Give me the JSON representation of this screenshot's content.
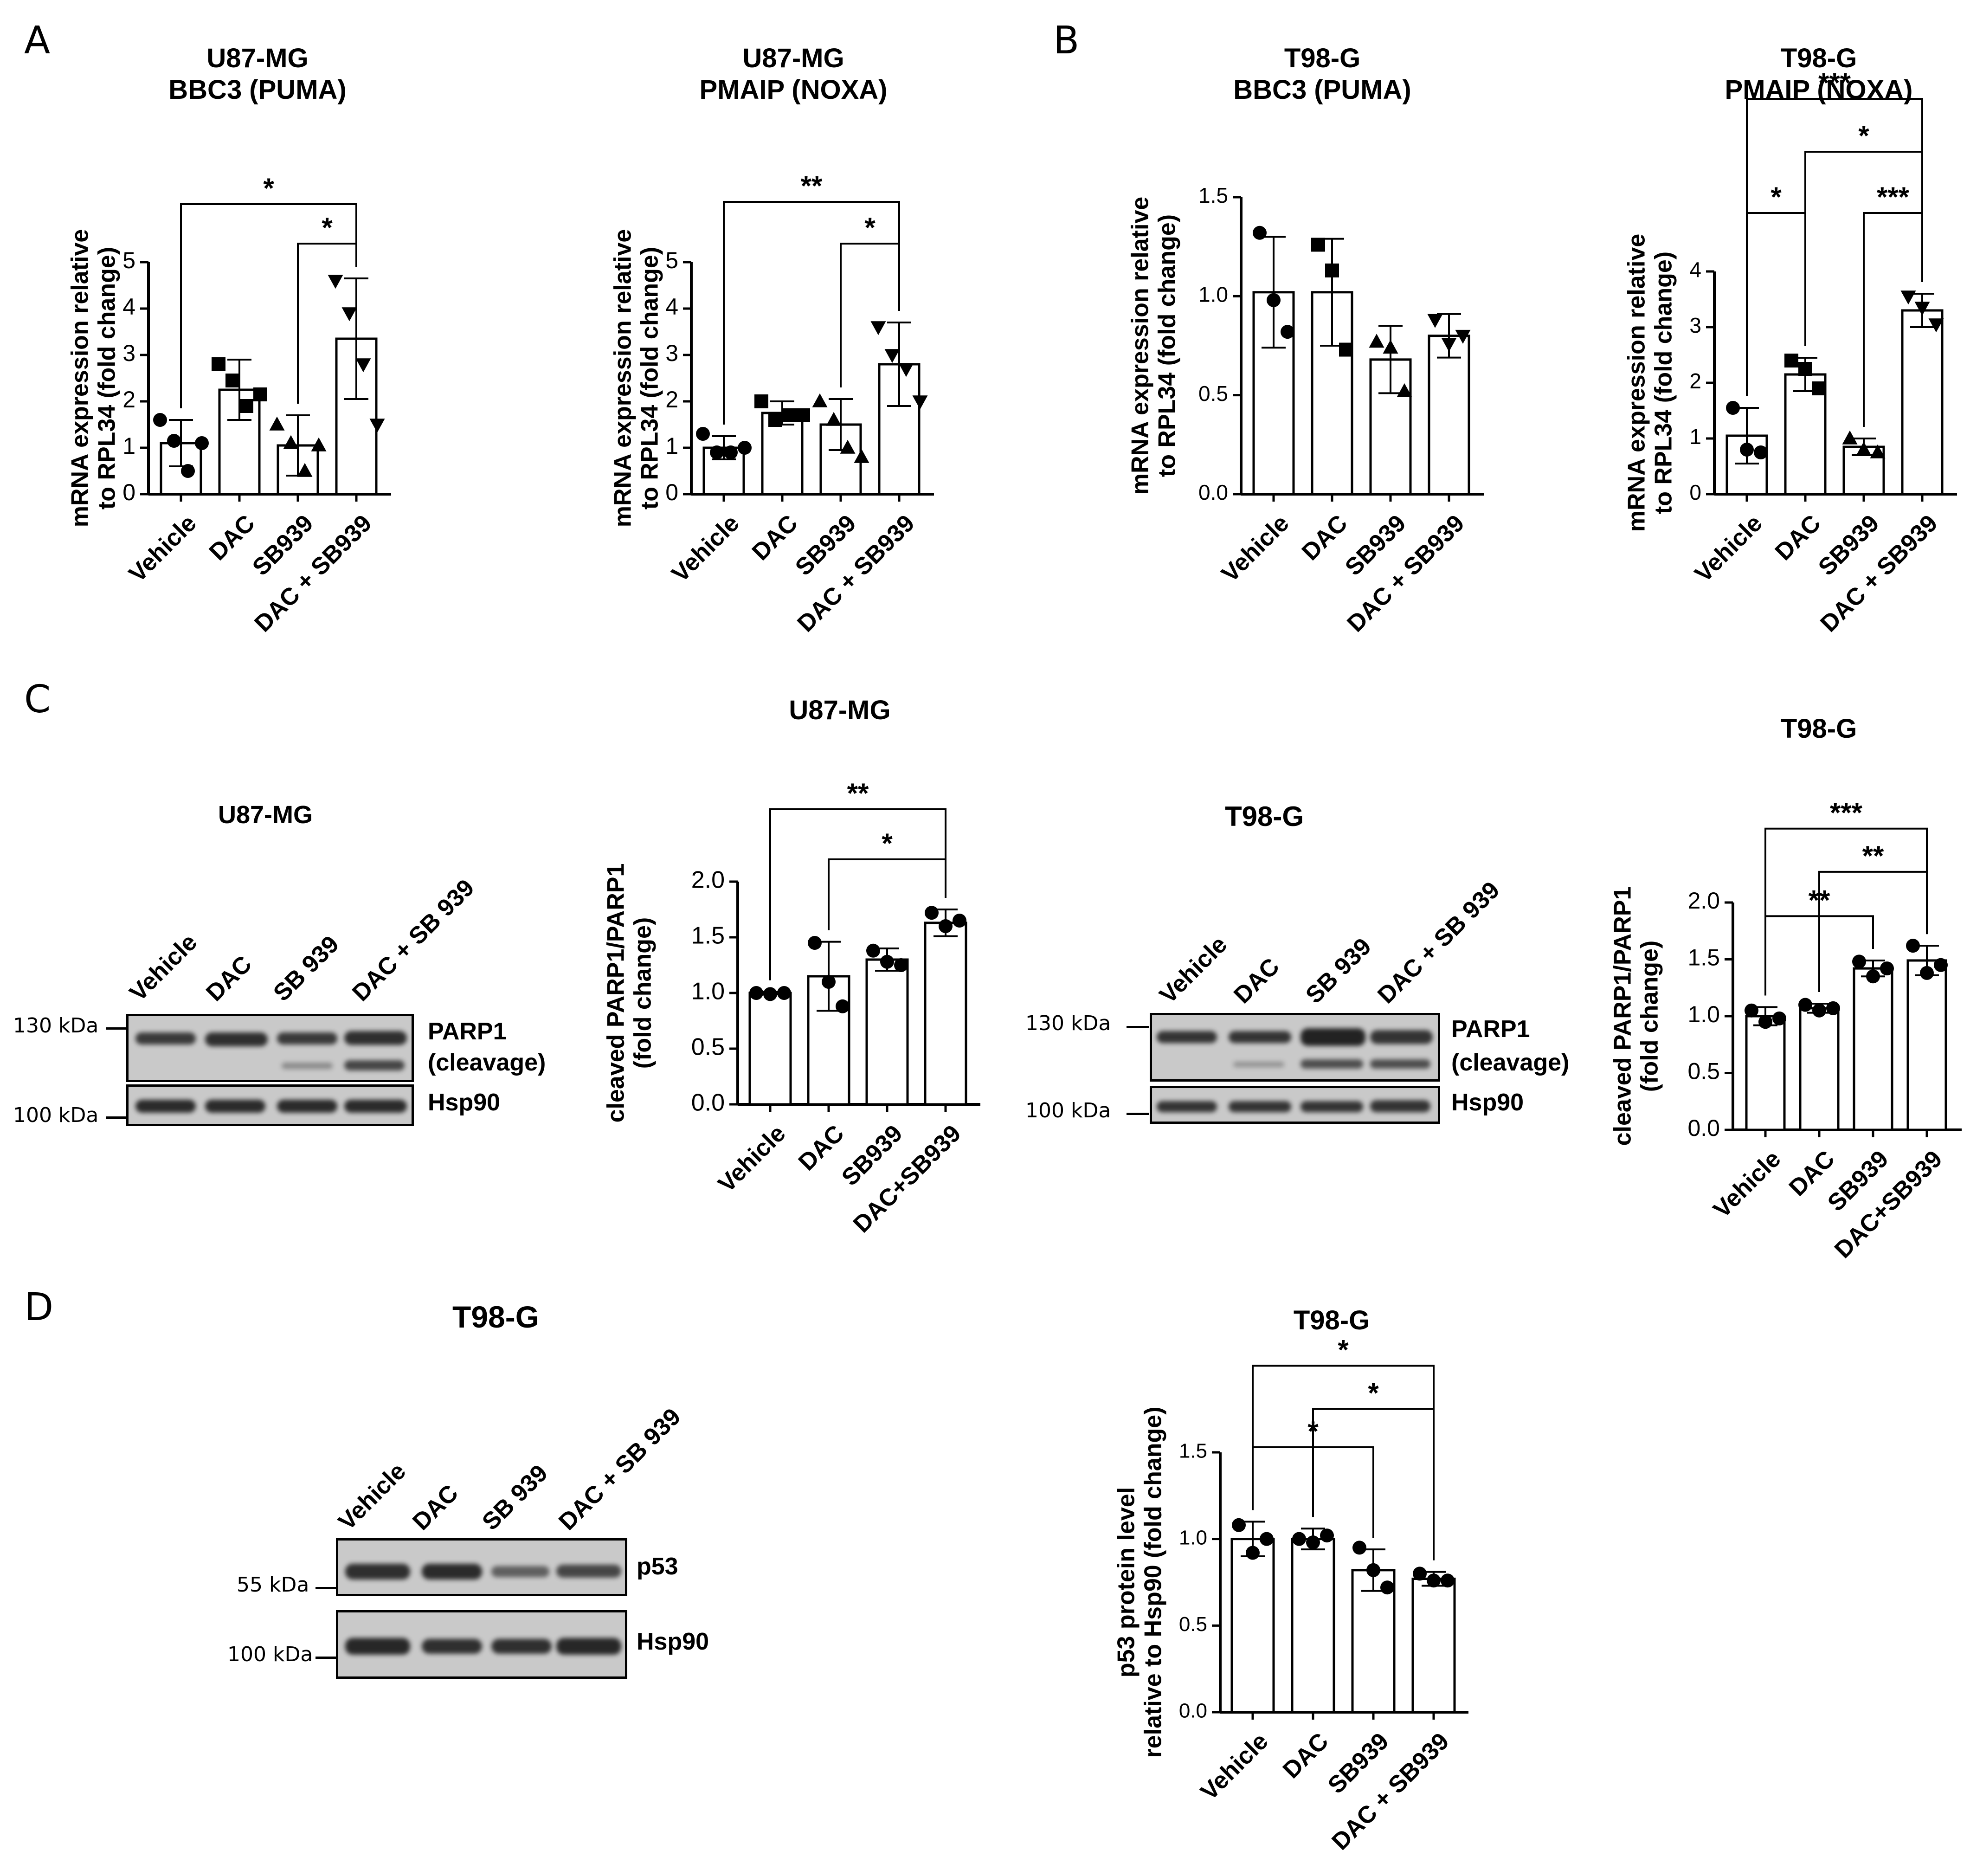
{
  "panel_letters": [
    "A",
    "B",
    "C",
    "D"
  ],
  "colors": {
    "ink": "#000000",
    "bar_fill": "#ffffff",
    "membrane": "#c9c9c9",
    "band": "#1a1a1a"
  },
  "blots": {
    "u87": {
      "header": "U87-MG",
      "lanes": [
        "Vehicle",
        "DAC",
        "SB 939",
        "DAC + SB 939"
      ],
      "markers": [
        "130 kDa",
        "100 kDa"
      ],
      "strip_labels": [
        "PARP1",
        "(cleavage)",
        "Hsp90"
      ]
    },
    "t98": {
      "header": "T98-G",
      "lanes": [
        "Vehicle",
        "DAC",
        "SB 939",
        "DAC + SB 939"
      ],
      "markers": [
        "130 kDa",
        "100 kDa"
      ],
      "strip_labels": [
        "PARP1",
        "(cleavage)",
        "Hsp90"
      ]
    },
    "p53": {
      "header": "T98-G",
      "lanes": [
        "Vehicle",
        "DAC",
        "SB 939",
        "DAC + SB 939"
      ],
      "markers": [
        "55 kDa",
        "100 kDa"
      ],
      "strip_labels": [
        "p53",
        "Hsp90"
      ]
    }
  },
  "chart_data": [
    {
      "id": "a1",
      "type": "bar",
      "title": [
        "U87-MG",
        "BBC3 (PUMA)"
      ],
      "ylabel": [
        "mRNA expression relative",
        "to RPL34 (fold change)"
      ],
      "categories": [
        "Vehicle",
        "DAC",
        "SB939",
        "DAC + SB939"
      ],
      "values": [
        1.1,
        2.25,
        1.05,
        3.35
      ],
      "errors": [
        0.5,
        0.65,
        0.65,
        1.3
      ],
      "marker": [
        "circle",
        "square",
        "triangle",
        "triangle-down"
      ],
      "points": [
        [
          1.6,
          1.15,
          0.5,
          1.1
        ],
        [
          2.8,
          2.45,
          1.9,
          2.15
        ],
        [
          1.5,
          1.1,
          0.5,
          1.05
        ],
        [
          4.6,
          3.9,
          2.8,
          1.5
        ]
      ],
      "ylim": [
        0,
        5
      ],
      "yticks": [
        0,
        1,
        2,
        3,
        4,
        5
      ],
      "significance": [
        {
          "from": 0,
          "to": 3,
          "label": "*",
          "level": 6.25
        },
        {
          "from": 2,
          "to": 3,
          "label": "*",
          "level": 5.4
        }
      ]
    },
    {
      "id": "a2",
      "type": "bar",
      "title": [
        "U87-MG",
        "PMAIP (NOXA)"
      ],
      "ylabel": [
        "mRNA expression relative",
        "to RPL34 (fold change)"
      ],
      "categories": [
        "Vehicle",
        "DAC",
        "SB939",
        "DAC + SB939"
      ],
      "values": [
        1.0,
        1.75,
        1.5,
        2.8
      ],
      "errors": [
        0.25,
        0.25,
        0.55,
        0.9
      ],
      "marker": [
        "circle",
        "square",
        "triangle",
        "triangle-down"
      ],
      "points": [
        [
          1.3,
          0.9,
          0.9,
          1.0
        ],
        [
          2.0,
          1.6,
          1.7,
          1.7
        ],
        [
          2.0,
          1.6,
          1.0,
          0.8
        ],
        [
          3.6,
          3.0,
          2.7,
          2.0
        ]
      ],
      "ylim": [
        0,
        5
      ],
      "yticks": [
        0,
        1,
        2,
        3,
        4,
        5
      ],
      "significance": [
        {
          "from": 0,
          "to": 3,
          "label": "**",
          "level": 6.3
        },
        {
          "from": 2,
          "to": 3,
          "label": "*",
          "level": 5.4
        }
      ]
    },
    {
      "id": "b1",
      "type": "bar",
      "title": [
        "T98-G",
        "BBC3 (PUMA)"
      ],
      "ylabel": [
        "mRNA expression relative",
        "to RPL34 (fold change)"
      ],
      "categories": [
        "Vehicle",
        "DAC",
        "SB939",
        "DAC + SB939"
      ],
      "values": [
        1.02,
        1.02,
        0.68,
        0.8
      ],
      "errors": [
        0.28,
        0.27,
        0.17,
        0.11
      ],
      "marker": [
        "circle",
        "square",
        "triangle",
        "triangle-down"
      ],
      "points": [
        [
          1.32,
          0.98,
          0.82
        ],
        [
          1.26,
          1.13,
          0.73
        ],
        [
          0.77,
          0.74,
          0.52
        ],
        [
          0.88,
          0.76,
          0.8
        ]
      ],
      "ylim": [
        0,
        1.5
      ],
      "yticks": [
        0.0,
        0.5,
        1.0,
        1.5
      ],
      "significance": []
    },
    {
      "id": "b2",
      "type": "bar",
      "title": [
        "T98-G",
        "PMAIP (NOXA)"
      ],
      "ylabel": [
        "mRNA expression relative",
        "to RPL34 (fold change)"
      ],
      "categories": [
        "Vehicle",
        "DAC",
        "SB939",
        "DAC + SB939"
      ],
      "values": [
        1.05,
        2.15,
        0.85,
        3.3
      ],
      "errors": [
        0.5,
        0.3,
        0.15,
        0.3
      ],
      "marker": [
        "circle",
        "square",
        "triangle",
        "triangle-down"
      ],
      "points": [
        [
          1.55,
          0.8,
          0.75
        ],
        [
          2.4,
          2.25,
          1.9
        ],
        [
          1.0,
          0.8,
          0.75
        ],
        [
          3.55,
          3.35,
          3.05
        ]
      ],
      "ylim": [
        0,
        4
      ],
      "yticks": [
        0,
        1,
        2,
        3,
        4
      ],
      "significance": [
        {
          "from": 0,
          "to": 3,
          "label": "***",
          "level": 7.1
        },
        {
          "from": 1,
          "to": 3,
          "label": "*",
          "level": 6.15
        },
        {
          "from": 0,
          "to": 1,
          "label": "*",
          "level": 5.05
        },
        {
          "from": 2,
          "to": 3,
          "label": "***",
          "level": 5.05
        }
      ]
    },
    {
      "id": "c1",
      "type": "bar",
      "title": [
        "U87-MG"
      ],
      "ylabel": [
        "cleaved PARP1/PARP1",
        "(fold change)"
      ],
      "categories": [
        "Vehicle",
        "DAC",
        "SB939",
        "DAC+SB939"
      ],
      "values": [
        1.0,
        1.15,
        1.3,
        1.63
      ],
      "errors": [
        0.01,
        0.31,
        0.1,
        0.12
      ],
      "marker": [
        "circle",
        "circle",
        "circle",
        "circle"
      ],
      "points": [
        [
          1.0,
          0.99,
          1.0
        ],
        [
          1.45,
          1.1,
          0.88
        ],
        [
          1.38,
          1.28,
          1.25
        ],
        [
          1.72,
          1.6,
          1.65
        ]
      ],
      "ylim": [
        0,
        2.0
      ],
      "yticks": [
        0.0,
        0.5,
        1.0,
        1.5,
        2.0
      ],
      "significance": [
        {
          "from": 0,
          "to": 3,
          "label": "**",
          "level": 2.65
        },
        {
          "from": 1,
          "to": 3,
          "label": "*",
          "level": 2.2
        }
      ]
    },
    {
      "id": "c2",
      "type": "bar",
      "title": [
        "T98-G"
      ],
      "ylabel": [
        "cleaved PARP1/PARP1",
        "(fold change)"
      ],
      "categories": [
        "Vehicle",
        "DAC",
        "SB939",
        "DAC+SB939"
      ],
      "values": [
        1.0,
        1.07,
        1.42,
        1.49
      ],
      "errors": [
        0.08,
        0.04,
        0.07,
        0.13
      ],
      "marker": [
        "circle",
        "circle",
        "circle",
        "circle"
      ],
      "points": [
        [
          1.05,
          0.95,
          0.98
        ],
        [
          1.1,
          1.05,
          1.07
        ],
        [
          1.48,
          1.35,
          1.42
        ],
        [
          1.62,
          1.38,
          1.45
        ]
      ],
      "ylim": [
        0,
        2.0
      ],
      "yticks": [
        0.0,
        0.5,
        1.0,
        1.5,
        2.0
      ],
      "significance": [
        {
          "from": 0,
          "to": 3,
          "label": "***",
          "level": 2.65
        },
        {
          "from": 1,
          "to": 3,
          "label": "**",
          "level": 2.27
        },
        {
          "from": 0,
          "to": 2,
          "label": "**",
          "level": 1.88
        }
      ]
    },
    {
      "id": "d1",
      "type": "bar",
      "title": [
        "T98-G"
      ],
      "ylabel": [
        "p53 protein level",
        "relative to Hsp90 (fold change)"
      ],
      "categories": [
        "Vehicle",
        "DAC",
        "SB939",
        "DAC + SB939"
      ],
      "values": [
        1.0,
        1.0,
        0.82,
        0.77
      ],
      "errors": [
        0.1,
        0.06,
        0.12,
        0.04
      ],
      "marker": [
        "circle",
        "circle",
        "circle",
        "circle"
      ],
      "points": [
        [
          1.08,
          0.92,
          1.0
        ],
        [
          1.0,
          0.98,
          1.02
        ],
        [
          0.95,
          0.82,
          0.72
        ],
        [
          0.8,
          0.76,
          0.76
        ]
      ],
      "ylim": [
        0,
        1.5
      ],
      "yticks": [
        0.0,
        0.5,
        1.0,
        1.5
      ],
      "significance": [
        {
          "from": 0,
          "to": 3,
          "label": "*",
          "level": 2.0
        },
        {
          "from": 1,
          "to": 3,
          "label": "*",
          "level": 1.75
        },
        {
          "from": 0,
          "to": 2,
          "label": "*",
          "level": 1.53
        }
      ]
    }
  ]
}
